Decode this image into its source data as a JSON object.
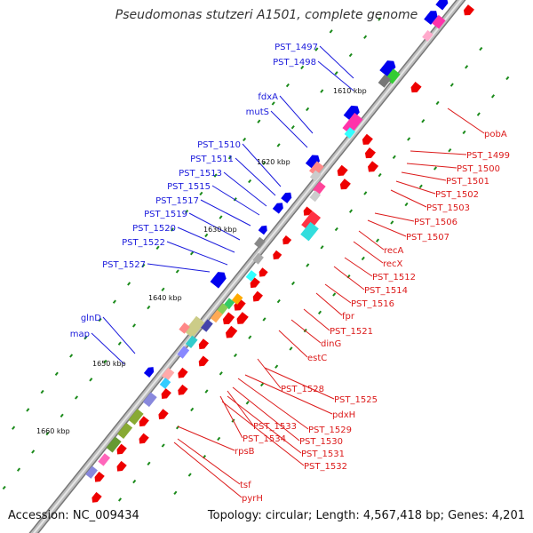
{
  "title": "Pseudomonas stutzeri A1501, complete genome",
  "footer": {
    "accession": "Accession: NC_009434",
    "topology": "Topology: circular; Length: 4,567,418 bp; Genes: 4,201"
  },
  "scale_labels": [
    "1610 kbp",
    "1620 kbp",
    "1630 kbp",
    "1640 kbp",
    "1650 kbp",
    "1660 kbp"
  ],
  "left_labels": [
    "PST_1497",
    "PST_1498",
    "fdxA",
    "mutS",
    "PST_1510",
    "PST_1511",
    "PST_1513",
    "PST_1515",
    "PST_1517",
    "PST_1519",
    "PST_1520",
    "PST_1522",
    "PST_1527",
    "glnD",
    "map"
  ],
  "right_labels": [
    "pobA",
    "PST_1499",
    "PST_1500",
    "PST_1501",
    "PST_1502",
    "PST_1503",
    "PST_1506",
    "PST_1507",
    "recA",
    "recX",
    "PST_1512",
    "PST_1514",
    "PST_1516",
    "fpr",
    "PST_1521",
    "dinG",
    "estC",
    "PST_1528",
    "PST_1525",
    "pdxH",
    "PST_1529",
    "PST_1533",
    "PST_1530",
    "PST_1534",
    "PST_1531",
    "PST_1532",
    "rpsB",
    "tsf",
    "pyrH"
  ],
  "colors": {
    "forward_strand": "#0000ee",
    "reverse_strand": "#ee0000",
    "blue_label": "#1a1adc",
    "red_label": "#dc1a1a",
    "backbone": "#9a9a9a",
    "tick": "#1a8a1a"
  }
}
